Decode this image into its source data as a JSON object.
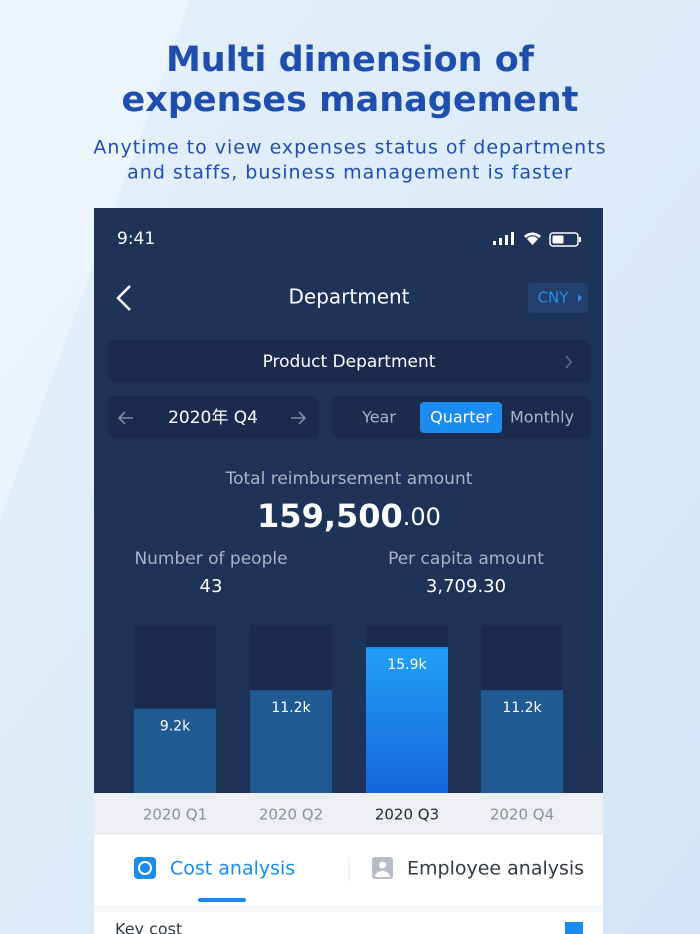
{
  "header": {
    "title_lines": [
      "Multi dimension of",
      "expenses management"
    ],
    "subtitle_lines": [
      "Anytime to view expenses status of departments",
      "and staffs, business management is faster"
    ]
  },
  "status_bar": {
    "time": "9:41"
  },
  "nav": {
    "title": "Department",
    "currency": "CNY"
  },
  "department": "Product Department",
  "period": {
    "label": "2020年 Q4",
    "options": [
      "Year",
      "Quarter",
      "Monthly"
    ],
    "selected": "Quarter"
  },
  "summary": {
    "total_label": "Total reimbursement amount",
    "total_integer": "159,500",
    "total_decimal": ".00",
    "people_label": "Number of people",
    "people": 43,
    "per_capita_label": "Per capita amount",
    "per_capita": "3,709.30"
  },
  "chart_data": {
    "type": "bar",
    "categories": [
      "2020 Q1",
      "2020 Q2",
      "2020 Q3",
      "2020 Q4"
    ],
    "values": [
      9200,
      11200,
      15900,
      11200
    ],
    "value_labels": [
      "9.2k",
      "11.2k",
      "15.9k",
      "11.2k"
    ],
    "color": "#1f5a93",
    "highlight": "2020 Q3",
    "highlight_color": "#1a8cf0"
  },
  "tabs": [
    "Cost analysis",
    "Employee analysis"
  ],
  "section": "Key cost"
}
